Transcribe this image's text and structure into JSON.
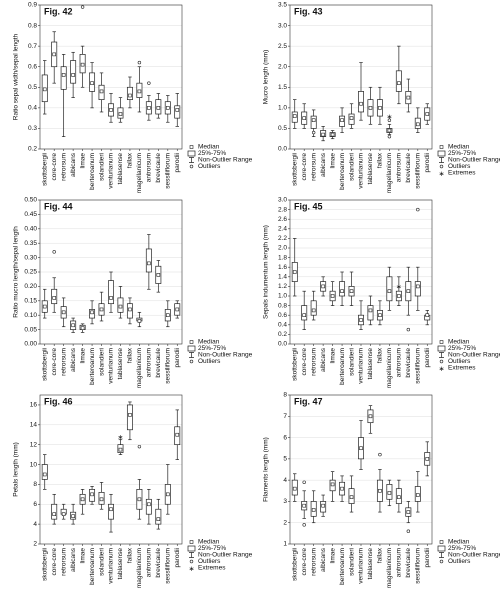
{
  "chart_data": [
    {
      "type": "box",
      "title": "Fig. 42",
      "ylabel": "Ratio sepal width/sepal length",
      "categories": [
        "skottsbergii",
        "core-core",
        "retrorsum",
        "albicans",
        "limae",
        "berteroanum",
        "solandieri",
        "venturianum",
        "tablasense",
        "fallax",
        "magellanicum",
        "antrorsum",
        "brevicaule",
        "sessiliflorum",
        "parodii"
      ],
      "ylim": [
        0.2,
        0.9
      ],
      "yticks": [
        0.2,
        0.3,
        0.4,
        0.5,
        0.6,
        0.7,
        0.8,
        0.9
      ],
      "grid": true,
      "min": [
        0.37,
        0.52,
        0.26,
        0.45,
        0.5,
        0.4,
        0.38,
        0.33,
        0.33,
        0.4,
        0.38,
        0.34,
        0.35,
        0.33,
        0.31
      ],
      "q1": [
        0.43,
        0.6,
        0.49,
        0.52,
        0.57,
        0.48,
        0.44,
        0.36,
        0.35,
        0.44,
        0.45,
        0.37,
        0.37,
        0.37,
        0.35
      ],
      "median": [
        0.49,
        0.66,
        0.56,
        0.56,
        0.61,
        0.52,
        0.48,
        0.39,
        0.37,
        0.46,
        0.48,
        0.4,
        0.4,
        0.4,
        0.39
      ],
      "q3": [
        0.56,
        0.72,
        0.6,
        0.63,
        0.66,
        0.57,
        0.51,
        0.42,
        0.4,
        0.5,
        0.52,
        0.43,
        0.44,
        0.43,
        0.41
      ],
      "max": [
        0.63,
        0.77,
        0.66,
        0.67,
        0.7,
        0.62,
        0.57,
        0.47,
        0.45,
        0.55,
        0.6,
        0.46,
        0.47,
        0.46,
        0.47
      ],
      "outliers": [
        [],
        [],
        [],
        [],
        [
          0.89
        ],
        [],
        [],
        [],
        [],
        [],
        [
          0.62
        ],
        [
          0.52
        ],
        [],
        [],
        []
      ],
      "legend": [
        "Median",
        "25%-75%",
        "Non-Outlier Range",
        "Outliers"
      ]
    },
    {
      "type": "box",
      "title": "Fig. 43",
      "ylabel": "Mucro length (mm)",
      "categories": [
        "skottsbergii",
        "core-core",
        "retrorsum",
        "albicans",
        "limae",
        "berteroanum",
        "solandieri",
        "venturianum",
        "tablasense",
        "fallax",
        "magellanicum",
        "antrorsum",
        "brevicaule",
        "sessiliflorum",
        "parodii"
      ],
      "ylim": [
        0,
        3.5
      ],
      "yticks": [
        {
          "value": 0,
          "label": "0.0"
        },
        0.5,
        {
          "value": 1,
          "label": "1.0"
        },
        1.5,
        {
          "value": 2,
          "label": "2.0"
        },
        2.5,
        {
          "value": 3,
          "label": "3.0"
        },
        3.5
      ],
      "grid": true,
      "min": [
        0.5,
        0.5,
        0.3,
        0.2,
        0.25,
        0.4,
        0.5,
        0.7,
        0.6,
        0.6,
        0.35,
        1.1,
        0.9,
        0.4,
        0.6
      ],
      "q1": [
        0.65,
        0.6,
        0.5,
        0.3,
        0.3,
        0.55,
        0.6,
        0.9,
        0.8,
        0.8,
        0.4,
        1.4,
        1.1,
        0.5,
        0.7
      ],
      "median": [
        0.8,
        0.75,
        0.7,
        0.35,
        0.35,
        0.7,
        0.75,
        1.1,
        1.0,
        1.0,
        0.45,
        1.6,
        1.25,
        0.6,
        0.85
      ],
      "q3": [
        0.9,
        0.9,
        0.8,
        0.45,
        0.4,
        0.8,
        0.85,
        1.4,
        1.2,
        1.2,
        0.5,
        1.9,
        1.4,
        0.75,
        1.0
      ],
      "max": [
        1.2,
        1.1,
        0.95,
        0.55,
        0.45,
        1.0,
        1.1,
        2.1,
        1.5,
        1.5,
        0.6,
        2.5,
        1.7,
        1.0,
        1.1
      ],
      "outliers": [
        [],
        [],
        [
          0.4
        ],
        [],
        [],
        [],
        [],
        [],
        [],
        [],
        [
          0.3,
          0.7
        ],
        [],
        [],
        [],
        []
      ],
      "extremes": [
        [],
        [],
        [],
        [],
        [],
        [],
        [],
        [],
        [],
        [],
        [
          0.8
        ],
        [],
        [],
        [],
        []
      ],
      "legend": [
        "Median",
        "25%-75%",
        "Non-Outlier Range",
        "Outliers",
        "Extremes"
      ]
    },
    {
      "type": "box",
      "title": "Fig. 44",
      "ylabel": "Ratio mucro length/sepal length",
      "categories": [
        "skottsbergii",
        "core-core",
        "retrorsum",
        "albicans",
        "limae",
        "berteroanum",
        "solandieri",
        "venturianum",
        "tablasense",
        "fallax",
        "magellanicum",
        "antrorsum",
        "brevicaule",
        "sessiliflorum",
        "parodii"
      ],
      "ylim": [
        0,
        0.5
      ],
      "yticks": [
        {
          "value": 0,
          "label": "0.00"
        },
        0.05,
        {
          "value": 0.1,
          "label": "0.10"
        },
        0.15,
        {
          "value": 0.2,
          "label": "0.20"
        },
        0.25,
        {
          "value": 0.3,
          "label": "0.30"
        },
        0.35,
        {
          "value": 0.4,
          "label": "0.40"
        },
        0.45,
        {
          "value": 0.5,
          "label": "0.50"
        }
      ],
      "grid": true,
      "min": [
        0.09,
        0.11,
        0.06,
        0.04,
        0.04,
        0.07,
        0.08,
        0.11,
        0.09,
        0.07,
        0.06,
        0.19,
        0.18,
        0.06,
        0.09
      ],
      "q1": [
        0.11,
        0.14,
        0.09,
        0.05,
        0.05,
        0.09,
        0.1,
        0.14,
        0.11,
        0.09,
        0.08,
        0.25,
        0.21,
        0.08,
        0.1
      ],
      "median": [
        0.13,
        0.16,
        0.11,
        0.065,
        0.055,
        0.11,
        0.12,
        0.16,
        0.13,
        0.12,
        0.08,
        0.28,
        0.24,
        0.1,
        0.12
      ],
      "q3": [
        0.15,
        0.19,
        0.13,
        0.08,
        0.065,
        0.12,
        0.14,
        0.22,
        0.16,
        0.14,
        0.09,
        0.33,
        0.27,
        0.12,
        0.14
      ],
      "max": [
        0.19,
        0.23,
        0.16,
        0.09,
        0.07,
        0.15,
        0.18,
        0.25,
        0.2,
        0.16,
        0.11,
        0.38,
        0.29,
        0.15,
        0.15
      ],
      "outliers": [
        [],
        [
          0.32
        ],
        [],
        [],
        [],
        [],
        [],
        [],
        [],
        [],
        [],
        [],
        [],
        [],
        []
      ],
      "legend": [
        "Median",
        "25%-75%",
        "Non-Outlier Range",
        "Outliers"
      ]
    },
    {
      "type": "box",
      "title": "Fig. 45",
      "ylabel": "Sepals indumentum length (mm)",
      "categories": [
        "skottsbergii",
        "core-core",
        "retrorsum",
        "albicans",
        "limae",
        "berteroanum",
        "solandieri",
        "venturianum",
        "tablasense",
        "fallax",
        "magellanicum",
        "antrorsum",
        "brevicaule",
        "sessiliflorum",
        "parodii"
      ],
      "ylim": [
        0,
        3
      ],
      "yticks": [
        {
          "value": 0,
          "label": "0.0"
        },
        0.2,
        0.4,
        0.6,
        0.8,
        {
          "value": 1,
          "label": "1.0"
        },
        1.2,
        1.4,
        1.6,
        1.8,
        {
          "value": 2,
          "label": "2.0"
        },
        2.2,
        2.4,
        2.6,
        2.8,
        {
          "value": 3,
          "label": "3.0"
        }
      ],
      "grid": true,
      "min": [
        1.0,
        0.3,
        0.5,
        1.0,
        0.8,
        0.8,
        0.8,
        0.3,
        0.4,
        0.4,
        0.7,
        0.8,
        0.6,
        0.7,
        0.4
      ],
      "q1": [
        1.3,
        0.5,
        0.6,
        1.1,
        0.9,
        1.0,
        1.0,
        0.4,
        0.5,
        0.5,
        0.9,
        0.9,
        0.9,
        1.0,
        0.5
      ],
      "median": [
        1.5,
        0.6,
        0.7,
        1.2,
        1.0,
        1.1,
        1.1,
        0.5,
        0.7,
        0.6,
        1.1,
        1.0,
        1.1,
        1.2,
        0.6
      ],
      "q3": [
        1.7,
        0.8,
        0.9,
        1.3,
        1.1,
        1.3,
        1.2,
        0.6,
        0.8,
        0.7,
        1.4,
        1.1,
        1.3,
        1.3,
        0.6
      ],
      "max": [
        2.2,
        1.1,
        1.1,
        1.4,
        1.3,
        1.5,
        1.5,
        0.9,
        1.0,
        0.9,
        1.6,
        1.4,
        1.6,
        1.6,
        0.7
      ],
      "outliers": [
        [],
        [],
        [],
        [],
        [],
        [],
        [],
        [],
        [],
        [],
        [],
        [],
        [
          0.3
        ],
        [
          2.8
        ],
        []
      ],
      "extremes": [
        [],
        [],
        [],
        [],
        [],
        [],
        [],
        [],
        [],
        [],
        [],
        [
          1.2
        ],
        [],
        [],
        []
      ],
      "legend": [
        "Median",
        "25%-75%",
        "Non-Outlier Range",
        "Outliers",
        "Extremes"
      ]
    },
    {
      "type": "box",
      "title": "Fig. 46",
      "ylabel": "Petals length (mm)",
      "categories": [
        "skottsbergii",
        "core-core",
        "retrorsum",
        "albicans",
        "limae",
        "berteroanum",
        "solandieri",
        "venturianum",
        "tablasense",
        "fallax",
        "magellanicum",
        "antrorsum",
        "brevicaule",
        "sessiliflorum",
        "parodii"
      ],
      "ylim": [
        2,
        17
      ],
      "yticks": [
        2,
        4,
        6,
        8,
        10,
        12,
        14,
        16
      ],
      "grid": true,
      "min": [
        7.5,
        4,
        4.5,
        4,
        5,
        6,
        5.5,
        3.2,
        11,
        12.5,
        4.5,
        4,
        3.5,
        5,
        10.5
      ],
      "q1": [
        8.5,
        4.5,
        5,
        4.5,
        6,
        6.3,
        6,
        4.5,
        11.2,
        13.5,
        5.5,
        5,
        4,
        6,
        12
      ],
      "median": [
        9,
        5,
        5,
        4.8,
        6.5,
        7,
        6.5,
        5.5,
        11.5,
        15,
        6.5,
        6,
        4.5,
        7,
        13
      ],
      "q3": [
        10,
        6,
        5.5,
        5.2,
        7,
        7.5,
        7.2,
        6,
        12,
        16,
        7.5,
        6.5,
        5.5,
        8,
        13.8
      ],
      "max": [
        11,
        7,
        6,
        6,
        7.5,
        7.8,
        8.2,
        7,
        12.5,
        16.3,
        8.5,
        7.5,
        6.5,
        10,
        15.5
      ],
      "outliers": [
        [],
        [],
        [],
        [],
        [],
        [],
        [],
        [],
        [],
        [],
        [
          11.8
        ],
        [],
        [],
        [],
        []
      ],
      "extremes": [
        [],
        [],
        [],
        [],
        [],
        [],
        [],
        [],
        [
          12.8
        ],
        [],
        [],
        [],
        [],
        [],
        []
      ],
      "legend": [
        "Median",
        "25%-75%",
        "Non-Outlier Range",
        "Outliers",
        "Extremes"
      ]
    },
    {
      "type": "box",
      "title": "Fig. 47",
      "ylabel": "Filaments length (mm)",
      "categories": [
        "skottsbergii",
        "core-core",
        "retrorsum",
        "albicans",
        "limae",
        "berteroanum",
        "solandieri",
        "venturianum",
        "tablasense",
        "fallax",
        "magellanicum",
        "antrorsum",
        "brevicaule",
        "sessiliflorum",
        "parodii"
      ],
      "ylim": [
        1,
        8
      ],
      "yticks": [
        1,
        2,
        3,
        4,
        5,
        6,
        7,
        8
      ],
      "grid": true,
      "min": [
        3,
        2.2,
        2,
        2.3,
        3,
        3,
        2.5,
        4.5,
        6.2,
        2.5,
        2.8,
        2.5,
        2,
        2.5,
        4.2
      ],
      "q1": [
        3.3,
        2.6,
        2.3,
        2.5,
        3.5,
        3.3,
        2.9,
        5,
        6.7,
        3,
        3.1,
        2.9,
        2.3,
        3,
        4.7
      ],
      "median": [
        3.6,
        2.8,
        2.6,
        2.8,
        3.8,
        3.6,
        3.2,
        5.5,
        7,
        3.5,
        3.4,
        3.2,
        2.5,
        3.3,
        5
      ],
      "q3": [
        4,
        3,
        3,
        3,
        4,
        3.9,
        3.6,
        6,
        7.3,
        4,
        3.8,
        3.6,
        2.7,
        3.7,
        5.3
      ],
      "max": [
        4.3,
        3.5,
        3.5,
        3.3,
        4.4,
        4.2,
        4.2,
        6.8,
        7.5,
        4.5,
        4,
        4,
        3,
        4.4,
        5.8
      ],
      "outliers": [
        [],
        [
          3.9,
          1.9
        ],
        [],
        [],
        [],
        [],
        [],
        [],
        [],
        [
          5.2
        ],
        [],
        [],
        [
          1.6
        ],
        [],
        []
      ],
      "legend": [
        "Median",
        "25%-75%",
        "Non-Outlier Range",
        "Outliers"
      ]
    }
  ]
}
